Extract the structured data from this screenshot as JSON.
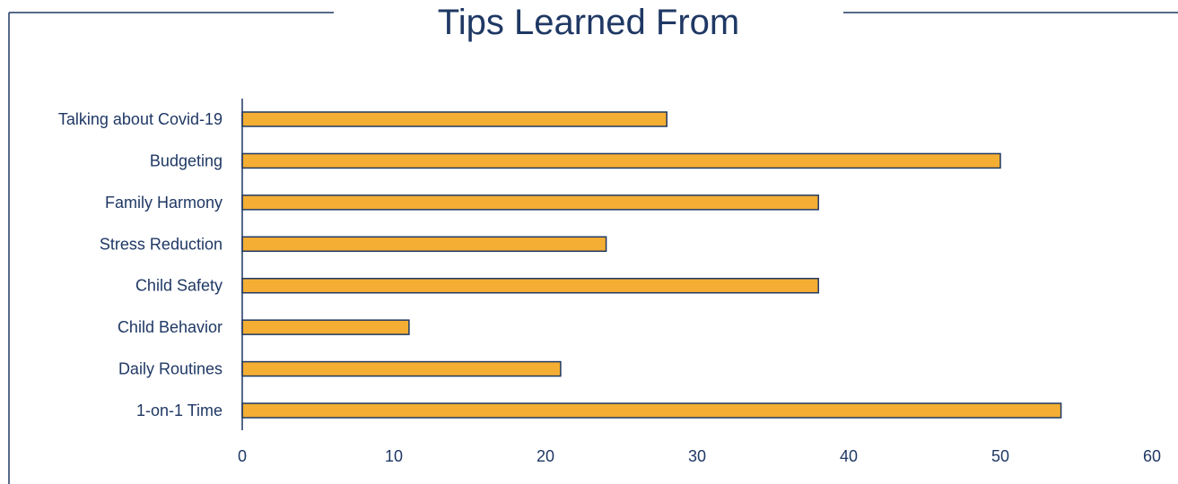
{
  "colors": {
    "frame": "#1f3864",
    "bar_fill": "#f4ae33",
    "bar_stroke": "#1f3864",
    "text": "#1f3864"
  },
  "chart_data": {
    "type": "bar",
    "orientation": "horizontal",
    "title": "Tips Learned From",
    "categories": [
      "Talking about Covid-19",
      "Budgeting",
      "Family Harmony",
      "Stress Reduction",
      "Child Safety",
      "Child Behavior",
      "Daily Routines",
      "1-on-1 Time"
    ],
    "values": [
      28,
      50,
      38,
      24,
      38,
      11,
      21,
      54
    ],
    "xlim": [
      0,
      60
    ],
    "xticks": [
      0,
      10,
      20,
      30,
      40,
      50,
      60
    ],
    "grid": false,
    "legend": "none"
  }
}
